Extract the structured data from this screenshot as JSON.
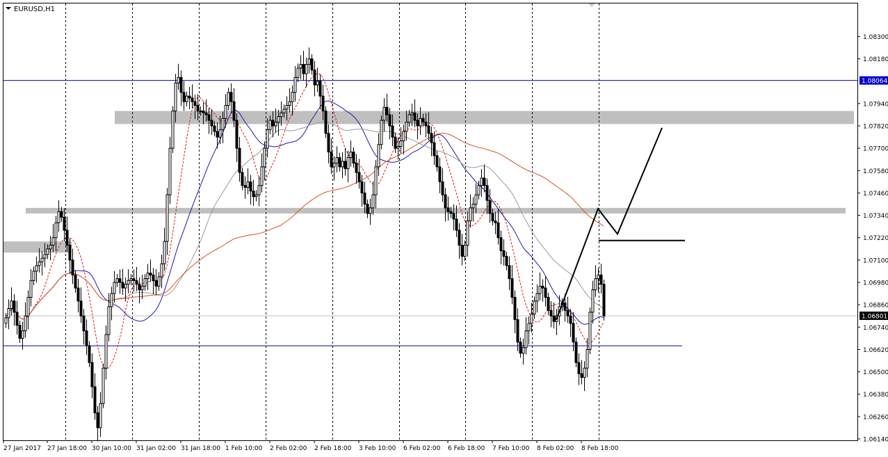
{
  "chart_data": {
    "type": "candlestick",
    "symbol_label": "EURUSD,H1",
    "colors": {
      "background": "#ffffff",
      "candle": "#000000",
      "grid": "#000000",
      "hline": "#0000c8",
      "zone": "#bfbfbf",
      "ma_blue": "#1a1aa8",
      "ma_gray": "#9a9a9a",
      "ma_orange": "#e0501e",
      "ma_red_dashed": "#e01010",
      "current_price_line": "#c0c0c0"
    },
    "ylim": [
      1.0614,
      1.0838
    ],
    "y_ticks": [
      "1.08300",
      "1.08180",
      "1.07940",
      "1.07820",
      "1.07700",
      "1.07580",
      "1.07460",
      "1.07340",
      "1.07220",
      "1.07100",
      "1.06980",
      "1.06860",
      "1.06740",
      "1.06620",
      "1.06500",
      "1.06380",
      "1.06260",
      "1.06140"
    ],
    "x_ticks": [
      "27 Jan 2017",
      "27 Jan 18:00",
      "30 Jan 10:00",
      "31 Jan 02:00",
      "31 Jan 18:00",
      "1 Feb 10:00",
      "2 Feb 02:00",
      "2 Feb 18:00",
      "3 Feb 10:00",
      "6 Feb 02:00",
      "6 Feb 18:00",
      "7 Feb 10:00",
      "8 Feb 02:00",
      "8 Feb 18:00"
    ],
    "marked_prices": [
      {
        "label": "1.08064",
        "value": 1.08064
      },
      {
        "label": "1.06801",
        "value": 1.06801
      }
    ],
    "support_line": 1.0664,
    "zones": [
      {
        "from": 1.0783,
        "to": 1.079
      },
      {
        "from": 1.0735,
        "to": 1.0738
      },
      {
        "from": 1.0714,
        "to": 1.072
      }
    ],
    "projection_path": [
      {
        "bar": 198,
        "price": 1.0678
      },
      {
        "bar": 213,
        "price": 1.07375
      },
      {
        "bar": 220,
        "price": 1.0724
      },
      {
        "bar": 236,
        "price": 1.0781
      }
    ],
    "level_segment_price": 1.07205,
    "closes": [
      1.0679,
      1.0684,
      1.0688,
      1.0682,
      1.0675,
      1.0668,
      1.0672,
      1.068,
      1.069,
      1.0699,
      1.0704,
      1.0707,
      1.0709,
      1.0711,
      1.0713,
      1.0716,
      1.0718,
      1.0722,
      1.073,
      1.0736,
      1.0733,
      1.0726,
      1.0718,
      1.071,
      1.0702,
      1.0695,
      1.0688,
      1.068,
      1.0672,
      1.0664,
      1.0655,
      1.0642,
      1.0628,
      1.062,
      1.0633,
      1.0652,
      1.067,
      1.0685,
      1.0692,
      1.0698,
      1.07,
      1.0698,
      1.0695,
      1.0697,
      1.0699,
      1.07,
      1.0699,
      1.0697,
      1.0694,
      1.0696,
      1.07,
      1.0703,
      1.0702,
      1.0699,
      1.0696,
      1.0701,
      1.0708,
      1.072,
      1.0745,
      1.077,
      1.079,
      1.0805,
      1.0808,
      1.08,
      1.0795,
      1.0798,
      1.0797,
      1.0795,
      1.0793,
      1.079,
      1.079,
      1.0789,
      1.0788,
      1.0785,
      1.0782,
      1.0779,
      1.0776,
      1.078,
      1.0786,
      1.0793,
      1.08,
      1.0795,
      1.0785,
      1.077,
      1.0757,
      1.075,
      1.0749,
      1.0752,
      1.0747,
      1.0744,
      1.0745,
      1.075,
      1.076,
      1.077,
      1.078,
      1.0785,
      1.0782,
      1.0784,
      1.0787,
      1.0789,
      1.0791,
      1.0793,
      1.0795,
      1.08,
      1.0808,
      1.0813,
      1.0815,
      1.081,
      1.0815,
      1.0818,
      1.0812,
      1.0804,
      1.0806,
      1.0798,
      1.079,
      1.0778,
      1.0768,
      1.076,
      1.0762,
      1.0765,
      1.076,
      1.0763,
      1.0759,
      1.0765,
      1.0768,
      1.0762,
      1.0757,
      1.0752,
      1.0746,
      1.074,
      1.0735,
      1.0738,
      1.0745,
      1.076,
      1.0772,
      1.0785,
      1.0792,
      1.0788,
      1.0782,
      1.0776,
      1.077,
      1.0771,
      1.0774,
      1.0779,
      1.0784,
      1.0788,
      1.0789,
      1.0785,
      1.0782,
      1.0786,
      1.0784,
      1.0782,
      1.0778,
      1.0773,
      1.0766,
      1.076,
      1.0752,
      1.0745,
      1.0738,
      1.0736,
      1.0735,
      1.0732,
      1.0726,
      1.0718,
      1.0712,
      1.0718,
      1.0731,
      1.0738,
      1.074,
      1.0745,
      1.075,
      1.0754,
      1.075,
      1.0742,
      1.0735,
      1.0731,
      1.073,
      1.0722,
      1.0715,
      1.0712,
      1.0707,
      1.07,
      1.069,
      1.0678,
      1.0666,
      1.066,
      1.0663,
      1.0672,
      1.0676,
      1.0681,
      1.0688,
      1.0692,
      1.0696,
      1.0695,
      1.069,
      1.0683,
      1.068,
      1.0677,
      1.068,
      1.0685,
      1.0687,
      1.0683,
      1.068,
      1.0676,
      1.0666,
      1.0655,
      1.0649,
      1.0647,
      1.0652,
      1.0662,
      1.0682,
      1.0694,
      1.07,
      1.0702,
      1.0697,
      1.068
    ]
  }
}
